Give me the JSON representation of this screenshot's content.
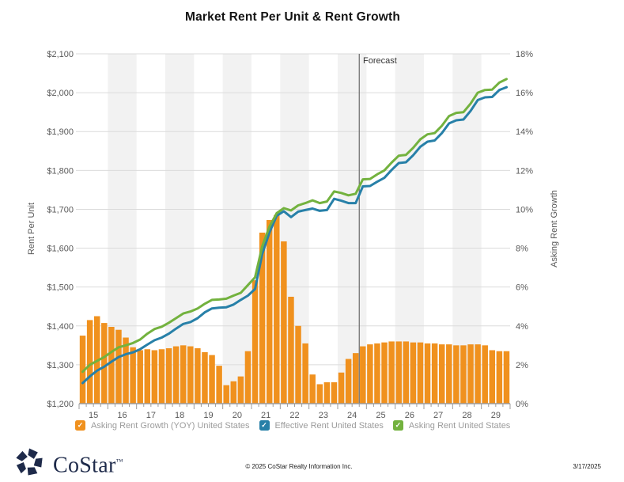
{
  "title": "Market Rent Per Unit & Rent Growth",
  "forecast_label": "Forecast",
  "chart_data": {
    "type": "combo",
    "x_axis": {
      "years": [
        "15",
        "16",
        "17",
        "18",
        "19",
        "20",
        "21",
        "22",
        "23",
        "24",
        "25",
        "26",
        "27",
        "28",
        "29"
      ],
      "quarters_per_year": 4
    },
    "y_left": {
      "label": "Rent Per Unit",
      "min": 1200,
      "max": 2100,
      "ticks": [
        "$2,100",
        "$2,000",
        "$1,900",
        "$1,800",
        "$1,700",
        "$1,600",
        "$1,500",
        "$1,400",
        "$1,300",
        "$1,200"
      ]
    },
    "y_right": {
      "label": "Asking Rent Growth",
      "min": 0,
      "max": 18,
      "ticks": [
        "18%",
        "16%",
        "14%",
        "12%",
        "10%",
        "8%",
        "6%",
        "4%",
        "2%",
        "0%"
      ]
    },
    "forecast": {
      "label": "Forecast",
      "quarter_index": 39
    },
    "grid": {
      "h_gridlines": true,
      "alt_year_bands": true
    },
    "series": [
      {
        "name": "Asking Rent Growth (YOY) United States",
        "type": "bar",
        "axis": "right",
        "color": "#F0911E",
        "values": [
          3.5,
          4.3,
          4.5,
          4.15,
          3.95,
          3.8,
          3.4,
          2.9,
          2.75,
          2.8,
          2.75,
          2.8,
          2.85,
          2.95,
          3.0,
          2.95,
          2.85,
          2.65,
          2.5,
          1.95,
          0.95,
          1.15,
          1.4,
          2.7,
          6.35,
          8.8,
          9.45,
          9.7,
          8.35,
          5.5,
          4.0,
          3.1,
          1.5,
          1.0,
          1.1,
          1.1,
          1.6,
          2.3,
          2.6,
          2.95,
          3.05,
          3.1,
          3.15,
          3.2,
          3.2,
          3.2,
          3.15,
          3.15,
          3.1,
          3.1,
          3.05,
          3.05,
          3.0,
          3.0,
          3.05,
          3.05,
          3.0,
          2.75,
          2.7,
          2.7
        ]
      },
      {
        "name": "Effective Rent United States",
        "type": "line",
        "axis": "left",
        "color": "#2780A8",
        "values": [
          1253,
          1270,
          1285,
          1295,
          1308,
          1320,
          1327,
          1332,
          1340,
          1352,
          1363,
          1370,
          1380,
          1393,
          1405,
          1410,
          1420,
          1435,
          1445,
          1447,
          1448,
          1455,
          1467,
          1478,
          1495,
          1585,
          1640,
          1683,
          1695,
          1680,
          1694,
          1698,
          1702,
          1696,
          1698,
          1727,
          1722,
          1716,
          1716,
          1759,
          1760,
          1771,
          1781,
          1801,
          1819,
          1821,
          1839,
          1861,
          1874,
          1877,
          1896,
          1921,
          1929,
          1931,
          1953,
          1981,
          1988,
          1989,
          2007,
          2014
        ]
      },
      {
        "name": "Asking Rent United States",
        "type": "line",
        "axis": "left",
        "color": "#73B23E",
        "values": [
          1282,
          1300,
          1310,
          1320,
          1333,
          1345,
          1350,
          1356,
          1365,
          1380,
          1392,
          1398,
          1408,
          1420,
          1432,
          1437,
          1445,
          1457,
          1467,
          1468,
          1470,
          1478,
          1485,
          1505,
          1525,
          1605,
          1655,
          1690,
          1703,
          1697,
          1710,
          1716,
          1723,
          1716,
          1720,
          1746,
          1742,
          1736,
          1740,
          1777,
          1778,
          1790,
          1800,
          1820,
          1838,
          1840,
          1858,
          1880,
          1893,
          1896,
          1915,
          1940,
          1948,
          1950,
          1972,
          2000,
          2007,
          2008,
          2026,
          2035
        ]
      }
    ]
  },
  "legend": {
    "items": [
      {
        "label": "Asking Rent Growth (YOY) United States",
        "color": "#F0911E",
        "check": "✓"
      },
      {
        "label": "Effective Rent United States",
        "color": "#2780A8",
        "check": "✓"
      },
      {
        "label": "Asking Rent United States",
        "color": "#73B23E",
        "check": "✓"
      }
    ]
  },
  "footer": {
    "brand": "CoStar",
    "brand_tm": "™",
    "copyright": "© 2025 CoStar Realty Information Inc.",
    "date": "3/17/2025",
    "logo_color": "#1E2A4A"
  }
}
